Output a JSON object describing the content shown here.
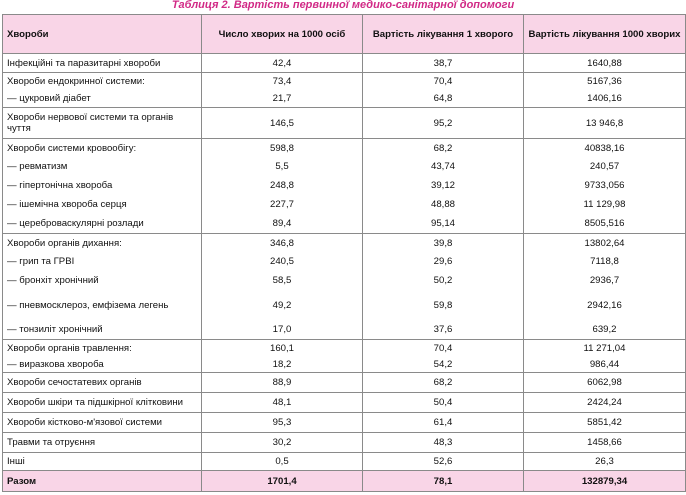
{
  "caption": "Таблиця 2. Вартість первинної медико-санітарної допомоги",
  "headers": {
    "c0": "Хвороби",
    "c1": "Число хворих на 1000 осіб",
    "c2": "Вартість лікування 1 хворого",
    "c3": "Вартість лікування 1000 хворих"
  },
  "rows": [
    {
      "c0": "Інфекційні та паразитарні хвороби",
      "c1": "42,4",
      "c2": "38,7",
      "c3": "1640,88"
    },
    {
      "c0": "Хвороби ендокринної системи:",
      "c1": "73,4",
      "c2": "70,4",
      "c3": "5167,36"
    },
    {
      "c0": "— цукровий діабет",
      "c1": "21,7",
      "c2": "64,8",
      "c3": "1406,16"
    },
    {
      "c0": "Хвороби нервової системи та органів чуття",
      "c1": "146,5",
      "c2": "95,2",
      "c3": "13 946,8"
    },
    {
      "c0": "Хвороби системи кровообігу:",
      "c1": "598,8",
      "c2": "68,2",
      "c3": "40838,16"
    },
    {
      "c0": "— ревматизм",
      "c1": "5,5",
      "c2": "43,74",
      "c3": "240,57"
    },
    {
      "c0": "— гіпертонічна хвороба",
      "c1": "248,8",
      "c2": "39,12",
      "c3": "9733,056"
    },
    {
      "c0": "— ішемічна хвороба серця",
      "c1": "227,7",
      "c2": "48,88",
      "c3": "11 129,98"
    },
    {
      "c0": "— цереброваскулярні розлади",
      "c1": "89,4",
      "c2": "95,14",
      "c3": "8505,516"
    },
    {
      "c0": "Хвороби органів дихання:",
      "c1": "346,8",
      "c2": "39,8",
      "c3": "13802,64"
    },
    {
      "c0": "— грип та ГРВІ",
      "c1": "240,5",
      "c2": "29,6",
      "c3": "7118,8"
    },
    {
      "c0": "— бронхіт хронічний",
      "c1": "58,5",
      "c2": "50,2",
      "c3": "2936,7"
    },
    {
      "c0": "— пневмосклероз, емфізема легень",
      "c1": "49,2",
      "c2": "59,8",
      "c3": "2942,16"
    },
    {
      "c0": "— тонзиліт хронічний",
      "c1": "17,0",
      "c2": "37,6",
      "c3": "639,2"
    },
    {
      "c0": "Хвороби органів травлення:",
      "c1": "160,1",
      "c2": "70,4",
      "c3": "11 271,04"
    },
    {
      "c0": "— виразкова хвороба",
      "c1": "18,2",
      "c2": "54,2",
      "c3": "986,44"
    },
    {
      "c0": "Хвороби сечостатевих органів",
      "c1": "88,9",
      "c2": "68,2",
      "c3": "6062,98"
    },
    {
      "c0": "Хвороби шкіри та підшкірної клітковини",
      "c1": "48,1",
      "c2": "50,4",
      "c3": "2424,24"
    },
    {
      "c0": "Хвороби кістково-м'язової системи",
      "c1": "95,3",
      "c2": "61,4",
      "c3": "5851,42"
    },
    {
      "c0": "Травми та отруєння",
      "c1": "30,2",
      "c2": "48,3",
      "c3": "1458,66"
    },
    {
      "c0": "Інші",
      "c1": "0,5",
      "c2": "52,6",
      "c3": "26,3"
    }
  ],
  "total": {
    "c0": "Разом",
    "c1": "1701,4",
    "c2": "78,1",
    "c3": "132879,34"
  }
}
